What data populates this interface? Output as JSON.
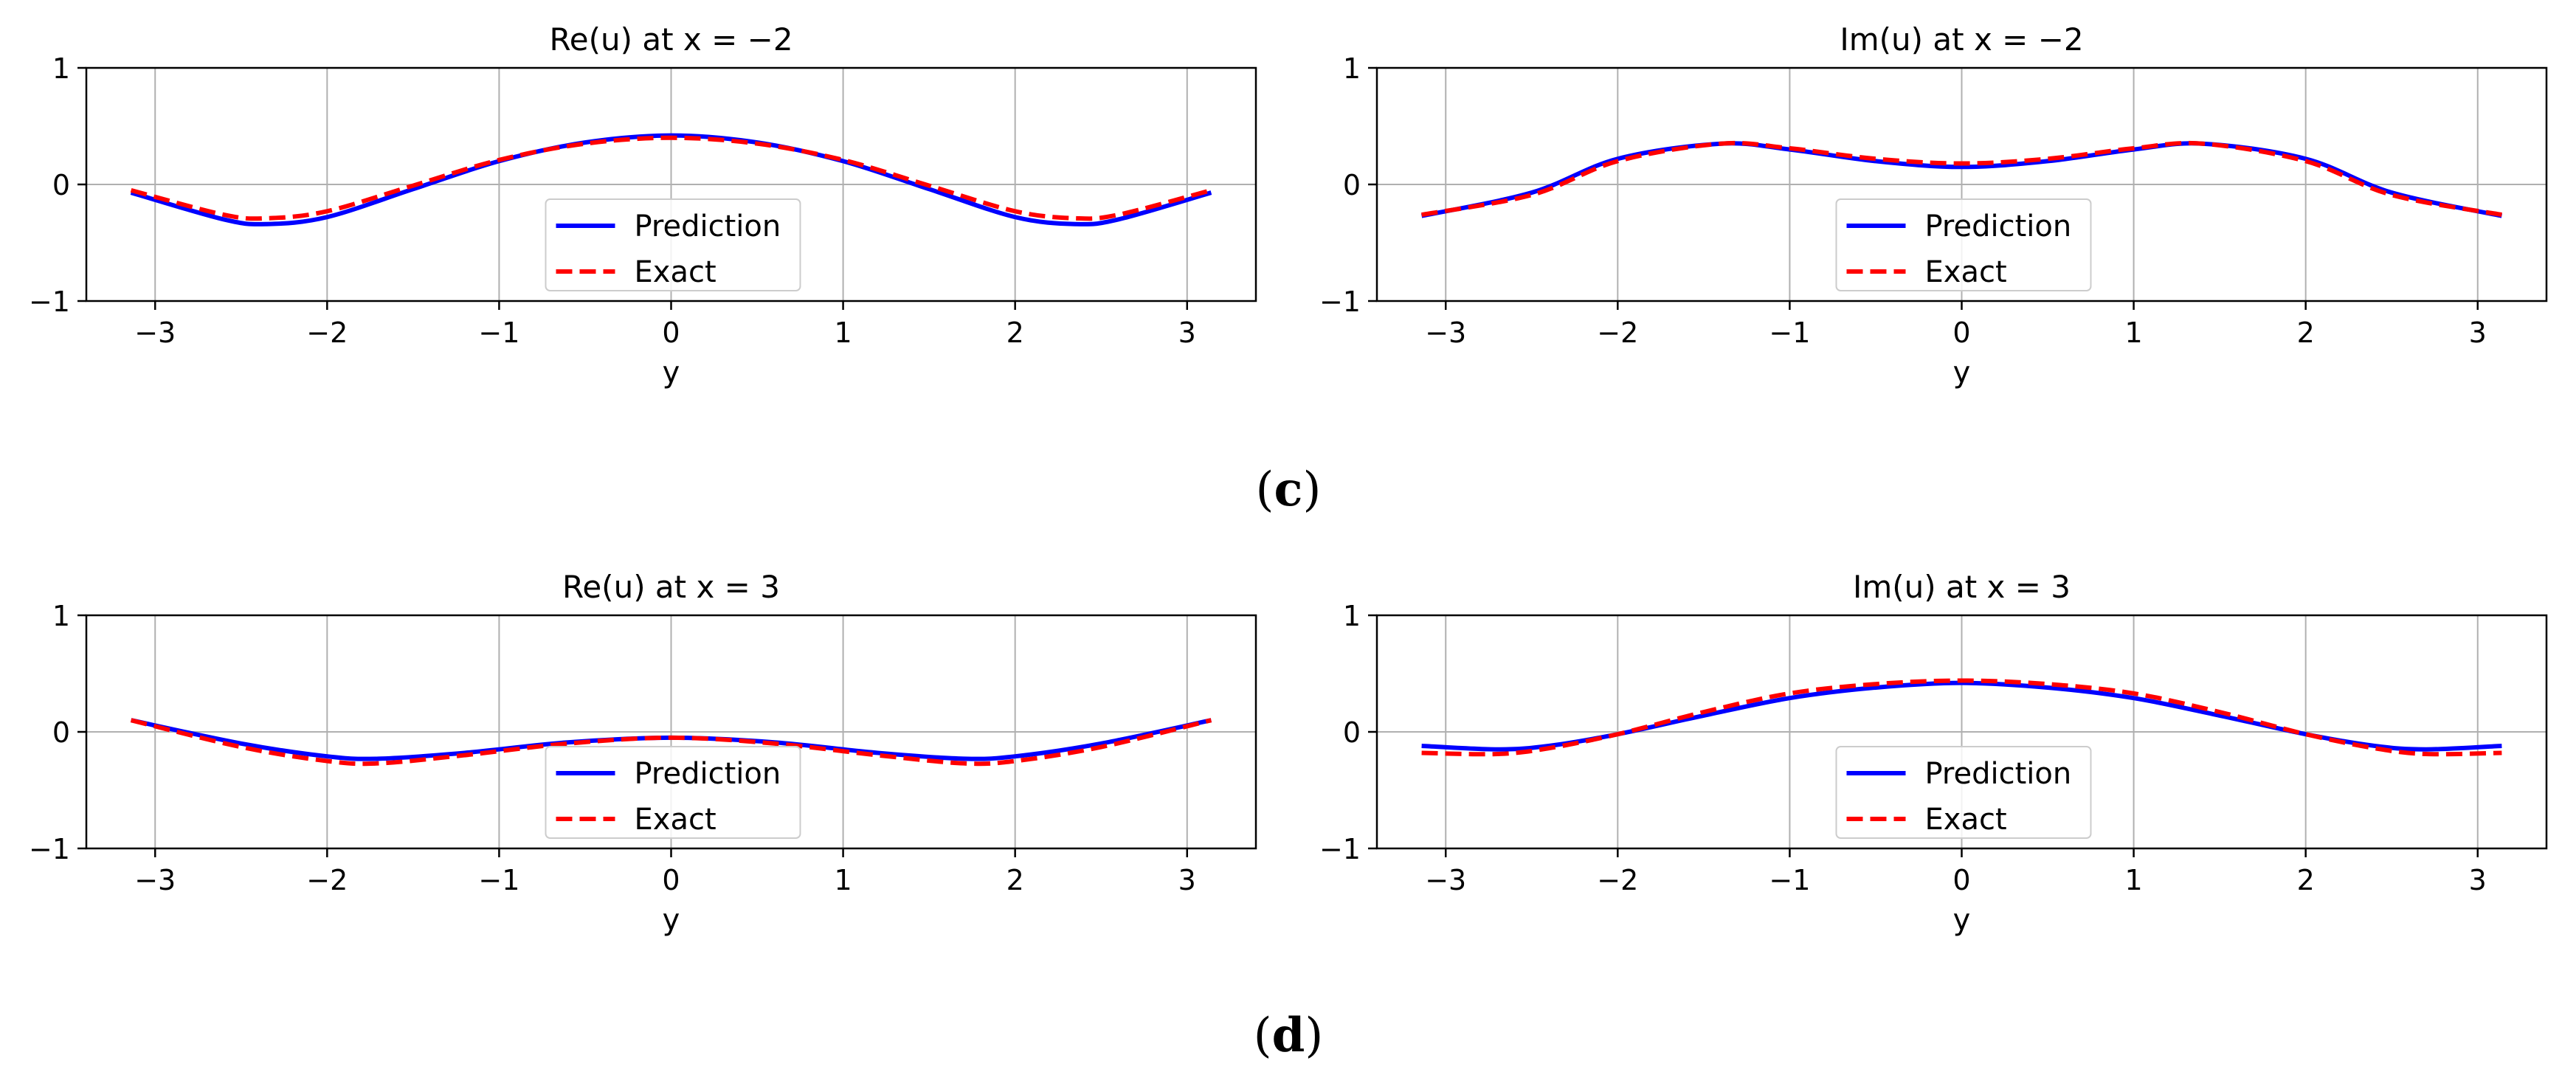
{
  "chart_data": [
    {
      "type": "line",
      "title": "Re(u) at x = −2",
      "xlabel": "y",
      "ylabel": "",
      "xlim": [
        -3.4,
        3.4
      ],
      "ylim": [
        -1,
        1
      ],
      "xticks": [
        -3,
        -2,
        -1,
        0,
        1,
        2,
        3
      ],
      "yticks": [
        -1,
        0,
        1
      ],
      "xtick_labels": [
        "−3",
        "−2",
        "−1",
        "0",
        "1",
        "2",
        "3"
      ],
      "ytick_labels": [
        "−1",
        "0",
        "1"
      ],
      "grid": true,
      "legend_placement": "lower-center",
      "x": [
        -3.14,
        -2.6,
        -2.35,
        -2.0,
        -1.5,
        -1.0,
        -0.5,
        0.0,
        0.5,
        1.0,
        1.5,
        2.0,
        2.35,
        2.6,
        3.14
      ],
      "series": [
        {
          "name": "Prediction",
          "color": "#0000ff",
          "style": "solid",
          "values": [
            -0.07,
            -0.3,
            -0.34,
            -0.28,
            -0.04,
            0.2,
            0.36,
            0.42,
            0.36,
            0.2,
            -0.04,
            -0.28,
            -0.34,
            -0.3,
            -0.07
          ]
        },
        {
          "name": "Exact",
          "color": "#ff0000",
          "style": "dashed",
          "values": [
            -0.05,
            -0.26,
            -0.29,
            -0.23,
            -0.01,
            0.21,
            0.35,
            0.4,
            0.35,
            0.21,
            -0.01,
            -0.23,
            -0.29,
            -0.26,
            -0.05
          ]
        }
      ]
    },
    {
      "type": "line",
      "title": "Im(u) at x = −2",
      "xlabel": "y",
      "ylabel": "",
      "xlim": [
        -3.4,
        3.4
      ],
      "ylim": [
        -1,
        1
      ],
      "xticks": [
        -3,
        -2,
        -1,
        0,
        1,
        2,
        3
      ],
      "yticks": [
        -1,
        0,
        1
      ],
      "xtick_labels": [
        "−3",
        "−2",
        "−1",
        "0",
        "1",
        "2",
        "3"
      ],
      "ytick_labels": [
        "−1",
        "0",
        "1"
      ],
      "grid": true,
      "legend_placement": "lower-center",
      "x": [
        -3.14,
        -2.5,
        -2.0,
        -1.4,
        -1.0,
        -0.5,
        0.0,
        0.5,
        1.0,
        1.4,
        2.0,
        2.5,
        3.14
      ],
      "series": [
        {
          "name": "Prediction",
          "color": "#0000ff",
          "style": "solid",
          "values": [
            -0.27,
            -0.07,
            0.22,
            0.35,
            0.3,
            0.2,
            0.15,
            0.2,
            0.3,
            0.35,
            0.22,
            -0.07,
            -0.27
          ]
        },
        {
          "name": "Exact",
          "color": "#ff0000",
          "style": "dashed",
          "values": [
            -0.26,
            -0.09,
            0.2,
            0.35,
            0.31,
            0.22,
            0.18,
            0.22,
            0.31,
            0.35,
            0.2,
            -0.09,
            -0.26
          ]
        }
      ]
    },
    {
      "type": "line",
      "title": "Re(u) at x = 3",
      "xlabel": "y",
      "ylabel": "",
      "xlim": [
        -3.4,
        3.4
      ],
      "ylim": [
        -1,
        1
      ],
      "xticks": [
        -3,
        -2,
        -1,
        0,
        1,
        2,
        3
      ],
      "yticks": [
        -1,
        0,
        1
      ],
      "xtick_labels": [
        "−3",
        "−2",
        "−1",
        "0",
        "1",
        "2",
        "3"
      ],
      "ytick_labels": [
        "−1",
        "0",
        "1"
      ],
      "grid": true,
      "legend_placement": "lower-center",
      "x": [
        -3.14,
        -2.5,
        -2.0,
        -1.7,
        -1.2,
        -0.6,
        0.0,
        0.6,
        1.2,
        1.7,
        2.0,
        2.5,
        3.14
      ],
      "series": [
        {
          "name": "Prediction",
          "color": "#0000ff",
          "style": "solid",
          "values": [
            0.1,
            -0.1,
            -0.21,
            -0.23,
            -0.18,
            -0.09,
            -0.05,
            -0.09,
            -0.18,
            -0.23,
            -0.21,
            -0.1,
            0.1
          ]
        },
        {
          "name": "Exact",
          "color": "#ff0000",
          "style": "dashed",
          "values": [
            0.1,
            -0.13,
            -0.25,
            -0.27,
            -0.2,
            -0.1,
            -0.05,
            -0.1,
            -0.2,
            -0.27,
            -0.25,
            -0.13,
            0.1
          ]
        }
      ]
    },
    {
      "type": "line",
      "title": "Im(u) at x = 3",
      "xlabel": "y",
      "ylabel": "",
      "xlim": [
        -3.4,
        3.4
      ],
      "ylim": [
        -1,
        1
      ],
      "xticks": [
        -3,
        -2,
        -1,
        0,
        1,
        2,
        3
      ],
      "yticks": [
        -1,
        0,
        1
      ],
      "xtick_labels": [
        "−3",
        "−2",
        "−1",
        "0",
        "1",
        "2",
        "3"
      ],
      "ytick_labels": [
        "−1",
        "0",
        "1"
      ],
      "grid": true,
      "legend_placement": "lower-center",
      "x": [
        -3.14,
        -2.7,
        -2.4,
        -2.0,
        -1.5,
        -1.0,
        -0.5,
        0.0,
        0.5,
        1.0,
        1.5,
        2.0,
        2.4,
        2.7,
        3.14
      ],
      "series": [
        {
          "name": "Prediction",
          "color": "#0000ff",
          "style": "solid",
          "values": [
            -0.12,
            -0.15,
            -0.12,
            -0.02,
            0.14,
            0.29,
            0.38,
            0.42,
            0.38,
            0.29,
            0.14,
            -0.02,
            -0.12,
            -0.15,
            -0.12
          ]
        },
        {
          "name": "Exact",
          "color": "#ff0000",
          "style": "dashed",
          "values": [
            -0.18,
            -0.19,
            -0.14,
            -0.02,
            0.17,
            0.33,
            0.41,
            0.44,
            0.41,
            0.33,
            0.17,
            -0.02,
            -0.14,
            -0.19,
            -0.18
          ]
        }
      ]
    }
  ],
  "panel_labels": [
    {
      "open": "(",
      "letter": "c",
      "close": ")"
    },
    {
      "open": "(",
      "letter": "d",
      "close": ")"
    }
  ]
}
